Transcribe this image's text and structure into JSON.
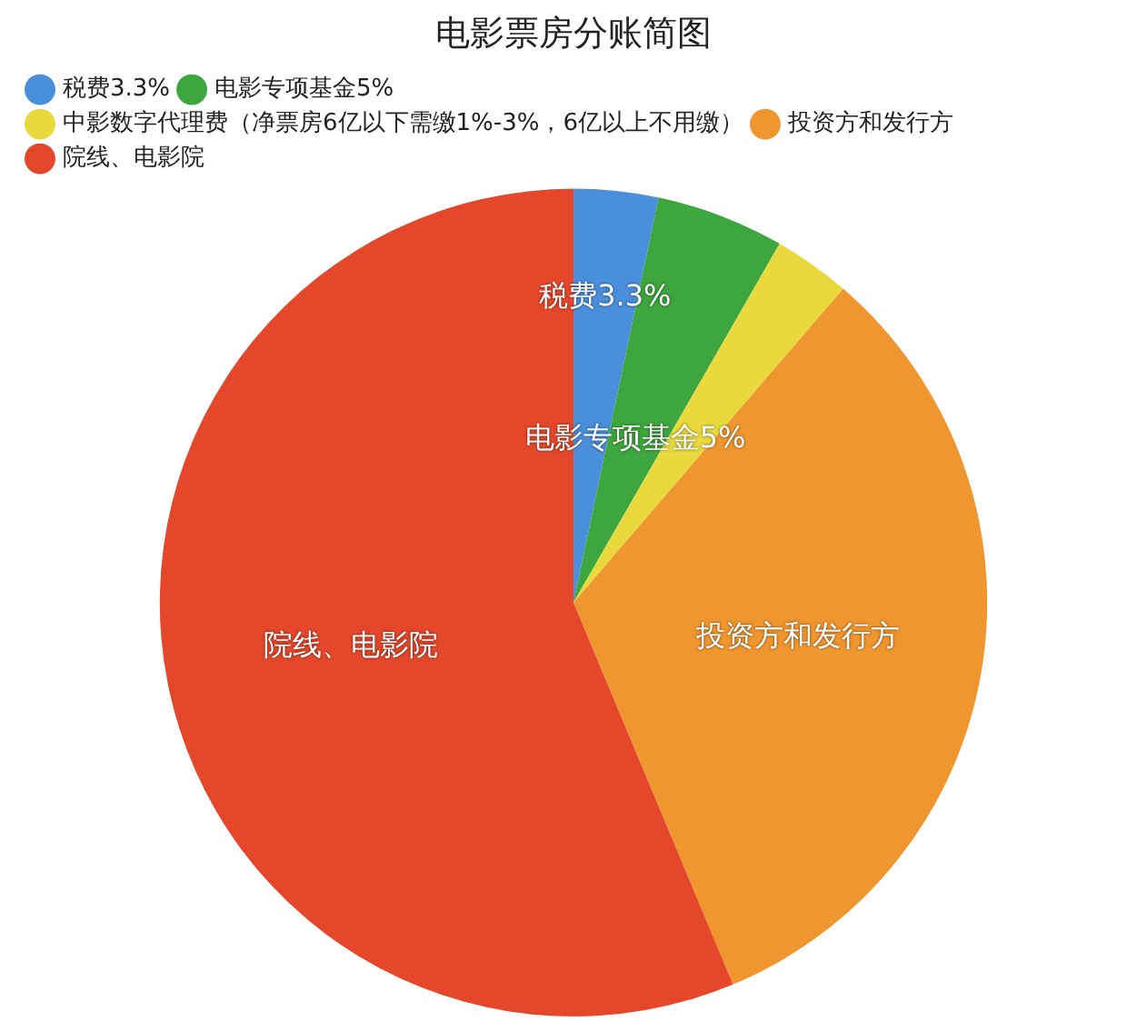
{
  "chart_data": {
    "type": "pie",
    "title": "电影票房分账简图",
    "categories": [
      "税费3.3%",
      "电影专项基金5%",
      "中影数字代理费（净票房6亿以下需缴1%-3%，6亿以上不用缴）",
      "投资方和发行方",
      "院线、电影院"
    ],
    "values": [
      3.3,
      5,
      3,
      32.4,
      56.3
    ],
    "colors": [
      "#4a8fdc",
      "#3ea63e",
      "#e9d93c",
      "#f0962f",
      "#e5472b"
    ],
    "value_labels": [
      "税费3.3%",
      "电影专项基金5%",
      null,
      "投资方和发行方",
      "院线、电影院"
    ],
    "legend": "top left"
  }
}
